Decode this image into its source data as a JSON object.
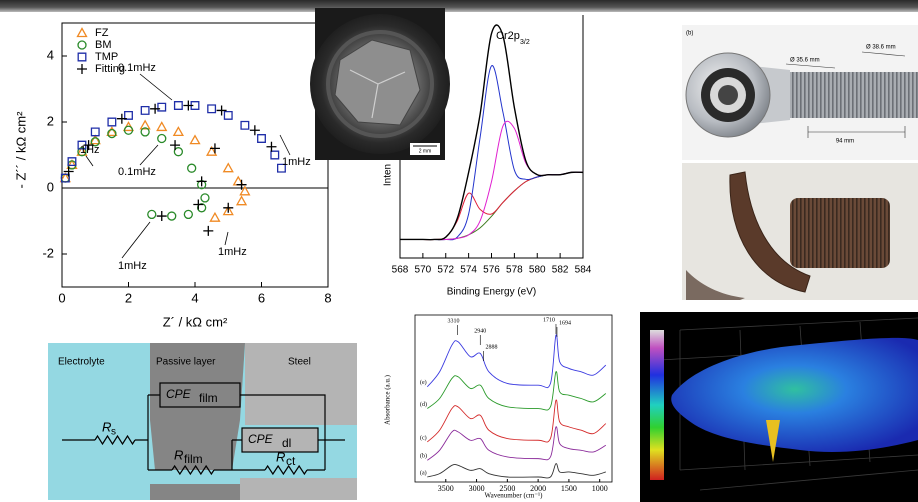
{
  "chart_data": [
    {
      "type": "scatter",
      "x_label": "Z´ / kΩ cm²",
      "y_label": "- Z´´ / kΩ cm²",
      "xlim": [
        0,
        8
      ],
      "xticks": [
        0,
        2,
        4,
        6,
        8
      ],
      "ylim": [
        -3,
        5
      ],
      "yticks": [
        -2,
        0,
        2,
        4
      ],
      "annotations": [
        "1Hz",
        "0.1mHz",
        "0.1mHz",
        "1mHz",
        "1mHz",
        "1mHz"
      ],
      "series": [
        {
          "name": "FZ",
          "color": "#f08a24",
          "marker": "triangle",
          "x": [
            0.1,
            0.3,
            0.6,
            1.0,
            1.5,
            2.0,
            2.5,
            3.0,
            3.5,
            4.0,
            4.5,
            5.0,
            5.3,
            5.5,
            5.4,
            5.0,
            4.6
          ],
          "values": [
            0.3,
            0.7,
            1.1,
            1.45,
            1.7,
            1.85,
            1.9,
            1.85,
            1.7,
            1.45,
            1.1,
            0.6,
            0.2,
            -0.1,
            -0.4,
            -0.7,
            -0.9
          ]
        },
        {
          "name": "BM",
          "color": "#2a8a2a",
          "marker": "circle",
          "x": [
            0.1,
            0.3,
            0.6,
            1.0,
            1.5,
            2.0,
            2.5,
            3.0,
            3.5,
            3.9,
            4.2,
            4.3,
            4.2,
            3.8,
            3.3,
            2.7
          ],
          "values": [
            0.3,
            0.7,
            1.1,
            1.4,
            1.65,
            1.75,
            1.7,
            1.5,
            1.1,
            0.6,
            0.1,
            -0.3,
            -0.6,
            -0.8,
            -0.85,
            -0.8
          ]
        },
        {
          "name": "TMP",
          "color": "#1f2ea8",
          "marker": "square",
          "x": [
            0.1,
            0.3,
            0.6,
            1.0,
            1.5,
            2.0,
            2.5,
            3.0,
            3.5,
            4.0,
            4.5,
            5.0,
            5.5,
            6.0,
            6.4,
            6.6
          ],
          "values": [
            0.3,
            0.8,
            1.3,
            1.7,
            2.0,
            2.2,
            2.35,
            2.45,
            2.5,
            2.5,
            2.4,
            2.2,
            1.9,
            1.5,
            1.0,
            0.6
          ]
        },
        {
          "name": "Fitting",
          "color": "#000000",
          "marker": "plus",
          "x": [
            0.2,
            0.8,
            1.8,
            2.8,
            3.8,
            4.8,
            5.8,
            6.3,
            3.4,
            4.2,
            4.1,
            3.0,
            4.6,
            5.4,
            5.0,
            4.4
          ],
          "values": [
            0.5,
            1.3,
            2.1,
            2.4,
            2.5,
            2.35,
            1.75,
            1.25,
            1.3,
            0.2,
            -0.5,
            -0.85,
            1.2,
            0.1,
            -0.6,
            -1.3
          ]
        }
      ]
    },
    {
      "type": "line",
      "peak_label": {
        "text": "Cr2p",
        "sub": "3/2"
      },
      "x_label": "Binding Energy (eV)",
      "y_label": "Inten",
      "xlim": [
        568,
        584
      ],
      "xticks": [
        568,
        570,
        572,
        574,
        576,
        578,
        580,
        582,
        584
      ],
      "ylim": [
        0,
        105
      ],
      "x": [
        568,
        569,
        570,
        571,
        572,
        573,
        574,
        575,
        576,
        577,
        578,
        579,
        580,
        581,
        582,
        583,
        584
      ],
      "series": [
        {
          "color": "#3d7a1e",
          "values": [
            8,
            8,
            8,
            8,
            8,
            8.5,
            10,
            13,
            18,
            24,
            29,
            33,
            35,
            36,
            36,
            37,
            37
          ]
        },
        {
          "color": "#e0203a",
          "values": [
            8,
            8,
            8,
            8,
            9,
            16,
            28,
            21,
            19,
            24,
            29,
            33,
            35,
            36,
            36,
            37,
            37
          ]
        },
        {
          "color": "#2233cc",
          "values": [
            8,
            8,
            8,
            8,
            8,
            9,
            19,
            52,
            83,
            63,
            38,
            34,
            35,
            36,
            36,
            37,
            37
          ]
        },
        {
          "color": "#e020d0",
          "values": [
            8,
            8,
            8,
            8,
            8,
            8.5,
            10,
            16,
            33,
            57,
            56,
            41,
            36,
            36,
            36,
            37,
            37
          ]
        },
        {
          "color": "#000000",
          "values": [
            8,
            8,
            8,
            8,
            9,
            17,
            37,
            62,
            97,
            96,
            65,
            42,
            36,
            36,
            36,
            37,
            37
          ]
        }
      ]
    },
    {
      "type": "line",
      "x_label": "Wavenumber (cm⁻¹)",
      "y_label": "Absorbance (a.u.)",
      "xlim": [
        4000,
        800
      ],
      "xticks": [
        3500,
        3000,
        2500,
        2000,
        1500,
        1000
      ],
      "ylim": [
        0,
        100
      ],
      "peak_labels": [
        3310,
        2940,
        2888,
        1710,
        1694
      ],
      "x": [
        3800,
        3600,
        3400,
        3300,
        3100,
        2940,
        2800,
        2500,
        2000,
        1800,
        1710,
        1650,
        1500,
        1300,
        1100,
        900
      ],
      "series": [
        {
          "name": "(a)",
          "color": "#333333",
          "values": [
            3,
            5,
            10,
            10,
            7,
            8,
            5,
            3,
            3,
            3,
            11,
            6,
            6,
            5,
            4,
            6
          ]
        },
        {
          "name": "(b)",
          "color": "#8a2a9a",
          "values": [
            13,
            19,
            30,
            30,
            25,
            26,
            19,
            15,
            14,
            15,
            33,
            23,
            20,
            19,
            18,
            22
          ]
        },
        {
          "name": "(c)",
          "color": "#d42a2a",
          "values": [
            24,
            31,
            44,
            45,
            38,
            40,
            31,
            26,
            25,
            26,
            49,
            36,
            33,
            31,
            29,
            35
          ]
        },
        {
          "name": "(d)",
          "color": "#2a9a2a",
          "values": [
            44,
            50,
            62,
            63,
            56,
            58,
            50,
            45,
            44,
            45,
            66,
            54,
            52,
            50,
            48,
            53
          ]
        },
        {
          "name": "(e)",
          "color": "#3a3ae0",
          "values": [
            57,
            66,
            82,
            84,
            75,
            77,
            66,
            59,
            58,
            59,
            88,
            72,
            68,
            66,
            64,
            70
          ]
        }
      ]
    }
  ],
  "circuit": {
    "regions": [
      "Electrolyte",
      "Passive layer",
      "Steel"
    ],
    "rs": {
      "main": "R",
      "sub": "s"
    },
    "cpe_film": {
      "main": "CPE",
      "sub": "film"
    },
    "r_film": {
      "main": "R",
      "sub": "film"
    },
    "cpe_dl": {
      "main": "CPE",
      "sub": "dl"
    },
    "r_ct": {
      "main": "R",
      "sub": "ct"
    }
  },
  "photos": {
    "fracture_scale": "2 mm",
    "rod_end": {
      "panel": "(b)",
      "dim_outer": "Ø 38.6 mm",
      "dim_inner": "Ø 35.6 mm",
      "length": "94 mm"
    }
  }
}
